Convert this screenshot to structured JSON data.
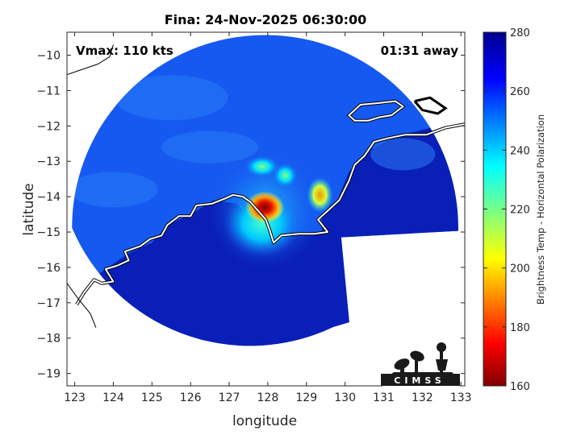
{
  "chart_data": {
    "type": "heatmap",
    "title": "Fina: 24-Nov-2025 06:30:00",
    "annotations": {
      "vmax": "Vmax: 110 kts",
      "time_away": "01:31 away"
    },
    "xlabel": "longitude",
    "ylabel": "latitude",
    "xlim": [
      122.8,
      133.1
    ],
    "ylim": [
      -19.35,
      -9.35
    ],
    "x_ticks": [
      123,
      124,
      125,
      126,
      127,
      128,
      129,
      130,
      131,
      132,
      133
    ],
    "y_ticks": [
      -10,
      -11,
      -12,
      -13,
      -14,
      -15,
      -16,
      -17,
      -18,
      -19
    ],
    "grid": false,
    "colorbar": {
      "label": "Brightness Temp - Horizontal Polarization",
      "range": [
        160,
        280
      ],
      "ticks": [
        280,
        260,
        240,
        220,
        200,
        180,
        160
      ],
      "colormap": "jet"
    },
    "swath": {
      "center": [
        127.93,
        -14.88
      ],
      "radius_deg": 5.0,
      "east_cut_lon": 129.9,
      "background_bt": 270
    },
    "features": [
      {
        "name": "eyewall",
        "lon": 127.92,
        "lat": -14.3,
        "bt": 175
      },
      {
        "name": "eyewall-east",
        "lon": 128.12,
        "lat": -14.35,
        "bt": 205
      },
      {
        "name": "inner-core",
        "lon": 127.85,
        "lat": -14.75,
        "bt": 230
      },
      {
        "name": "rainband-north",
        "lon": 127.85,
        "lat": -13.15,
        "bt": 238
      },
      {
        "name": "rainband-ne",
        "lon": 128.45,
        "lat": -13.4,
        "bt": 232
      },
      {
        "name": "rainband-east",
        "lon": 129.35,
        "lat": -13.95,
        "bt": 225
      }
    ],
    "logo": "CIMSS"
  },
  "colors": {
    "background_ocean": "#1659f0",
    "land": "#0a1fb8",
    "coastline": "#ffffff"
  }
}
